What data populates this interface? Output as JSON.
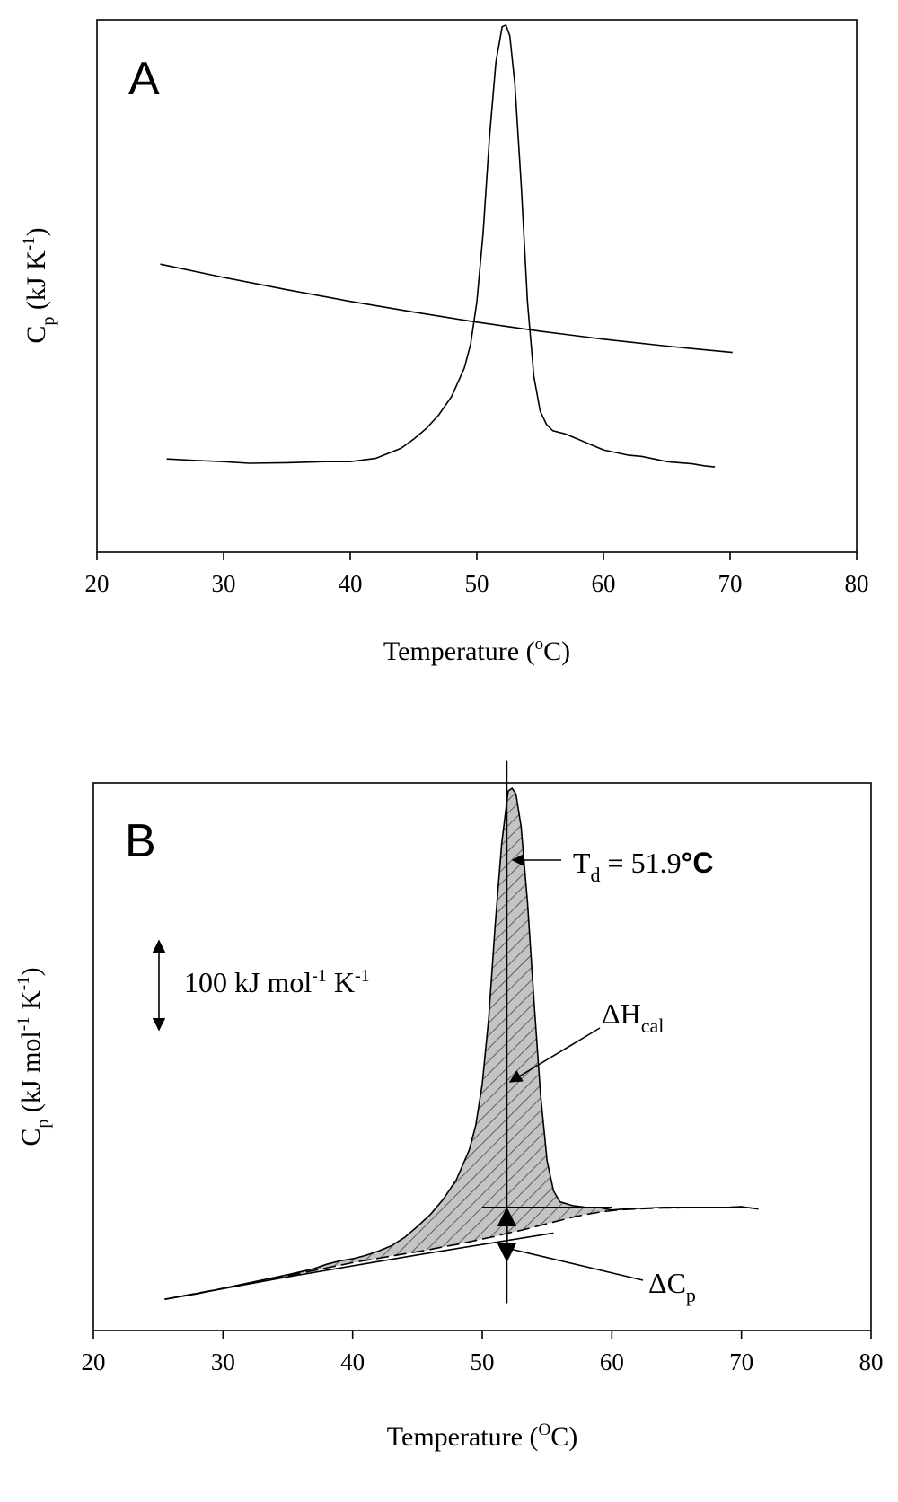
{
  "chart_data": [
    {
      "panel": "A",
      "type": "line",
      "title": "",
      "xlabel": "Temperature",
      "xlabel_unit_prefix": "o",
      "xlabel_unit": "C",
      "ylabel": "C",
      "ylabel_sub": "p",
      "ylabel_unit": "(kJ K",
      "ylabel_unit_sup": "-1",
      "ylabel_close": ")",
      "xlim": [
        20,
        80
      ],
      "ylim": [
        0,
        1
      ],
      "y_ticks_shown": false,
      "grid": false,
      "legend": "none",
      "x_ticks": [
        "20",
        "30",
        "40",
        "50",
        "60",
        "70",
        "80"
      ],
      "series": [
        {
          "x": [
            25.5,
            28,
            30,
            32,
            35,
            38,
            40,
            42,
            44,
            45,
            46,
            47,
            48,
            49,
            49.5,
            50,
            50.5,
            51,
            51.5,
            52,
            52.3,
            52.6,
            53,
            53.5,
            54,
            54.5,
            55,
            55.5,
            56,
            57,
            58,
            59,
            60,
            61,
            62,
            63,
            64,
            65,
            66,
            67,
            68,
            68.8
          ],
          "y": [
            0.175,
            0.172,
            0.17,
            0.167,
            0.168,
            0.17,
            0.17,
            0.176,
            0.195,
            0.212,
            0.232,
            0.258,
            0.292,
            0.345,
            0.39,
            0.47,
            0.6,
            0.78,
            0.92,
            0.987,
            0.99,
            0.97,
            0.88,
            0.69,
            0.47,
            0.33,
            0.265,
            0.24,
            0.228,
            0.222,
            0.212,
            0.202,
            0.192,
            0.187,
            0.182,
            0.18,
            0.175,
            0.17,
            0.168,
            0.166,
            0.162,
            0.16
          ]
        },
        {
          "x": [
            25,
            30,
            35,
            40,
            45,
            50,
            55,
            60,
            65,
            70.2
          ],
          "y": [
            0.541,
            0.516,
            0.493,
            0.471,
            0.451,
            0.432,
            0.415,
            0.4,
            0.387,
            0.375
          ]
        }
      ]
    },
    {
      "panel": "B",
      "type": "line",
      "title": "",
      "xlabel": "Temperature",
      "xlabel_unit_prefix": "O",
      "xlabel_unit": "C",
      "ylabel": "C",
      "ylabel_sub": "p",
      "ylabel_unit": "(kJ mol",
      "ylabel_unit_sup": "-1",
      "ylabel_unit2": " K",
      "ylabel_unit2_sup": "-1",
      "ylabel_close": ")",
      "xlim": [
        20,
        80
      ],
      "ylim": [
        0,
        1
      ],
      "y_ticks_shown": false,
      "grid": false,
      "legend": "none",
      "x_ticks": [
        "20",
        "30",
        "40",
        "50",
        "60",
        "70",
        "80"
      ],
      "td_value": 51.9,
      "series": [
        {
          "x": [
            25.5,
            28,
            30,
            32,
            35,
            37,
            38,
            39,
            40,
            41,
            42,
            43,
            44,
            45,
            46,
            47,
            48,
            49,
            49.5,
            50,
            50.5,
            51,
            51.5,
            52,
            52.3,
            52.6,
            53,
            53.5,
            54,
            54.5,
            55,
            55.5,
            56,
            57,
            58,
            59,
            60,
            61,
            62,
            63,
            64,
            65,
            66,
            67,
            68,
            69,
            70,
            71,
            71.3
          ],
          "y": [
            0.057,
            0.067,
            0.077,
            0.087,
            0.102,
            0.113,
            0.121,
            0.127,
            0.131,
            0.137,
            0.145,
            0.155,
            0.17,
            0.19,
            0.212,
            0.24,
            0.275,
            0.33,
            0.375,
            0.45,
            0.57,
            0.74,
            0.89,
            0.985,
            0.99,
            0.98,
            0.92,
            0.78,
            0.6,
            0.43,
            0.31,
            0.255,
            0.235,
            0.228,
            0.225,
            0.225,
            0.22,
            0.222,
            0.223,
            0.224,
            0.225,
            0.225,
            0.225,
            0.225,
            0.225,
            0.225,
            0.226,
            0.223,
            0.222
          ]
        },
        {
          "x": [
            25.5,
            30,
            35,
            40,
            42,
            44,
            45,
            46,
            47,
            48,
            49,
            50,
            51,
            52,
            53,
            54,
            55,
            56,
            57,
            58,
            59,
            60,
            61,
            62,
            63,
            64,
            65,
            66,
            67,
            68,
            69,
            70,
            71,
            71.3
          ],
          "y": [
            0.057,
            0.077,
            0.1,
            0.124,
            0.132,
            0.14,
            0.144,
            0.148,
            0.153,
            0.157,
            0.162,
            0.167,
            0.172,
            0.178,
            0.183,
            0.189,
            0.195,
            0.201,
            0.207,
            0.212,
            0.216,
            0.219,
            0.221,
            0.222,
            0.223,
            0.224,
            0.224,
            0.225,
            0.225,
            0.225,
            0.225,
            0.226,
            0.223,
            0.222
          ]
        },
        {
          "x": [
            25.5,
            35,
            45,
            55.5
          ],
          "y": [
            0.057,
            0.098,
            0.138,
            0.178
          ]
        }
      ],
      "annotations": {
        "td_label": "T",
        "td_sub": "d",
        "td_text": " = 51.9",
        "td_unit": "°C",
        "scale_bar_label": "100 kJ mol",
        "scale_bar_sup1": "-1",
        "scale_bar_mid": " K",
        "scale_bar_sup2": "-1",
        "dh_label": "ΔH",
        "dh_sub": "cal",
        "dcp_label": "ΔC",
        "dcp_sub": "p"
      }
    }
  ]
}
